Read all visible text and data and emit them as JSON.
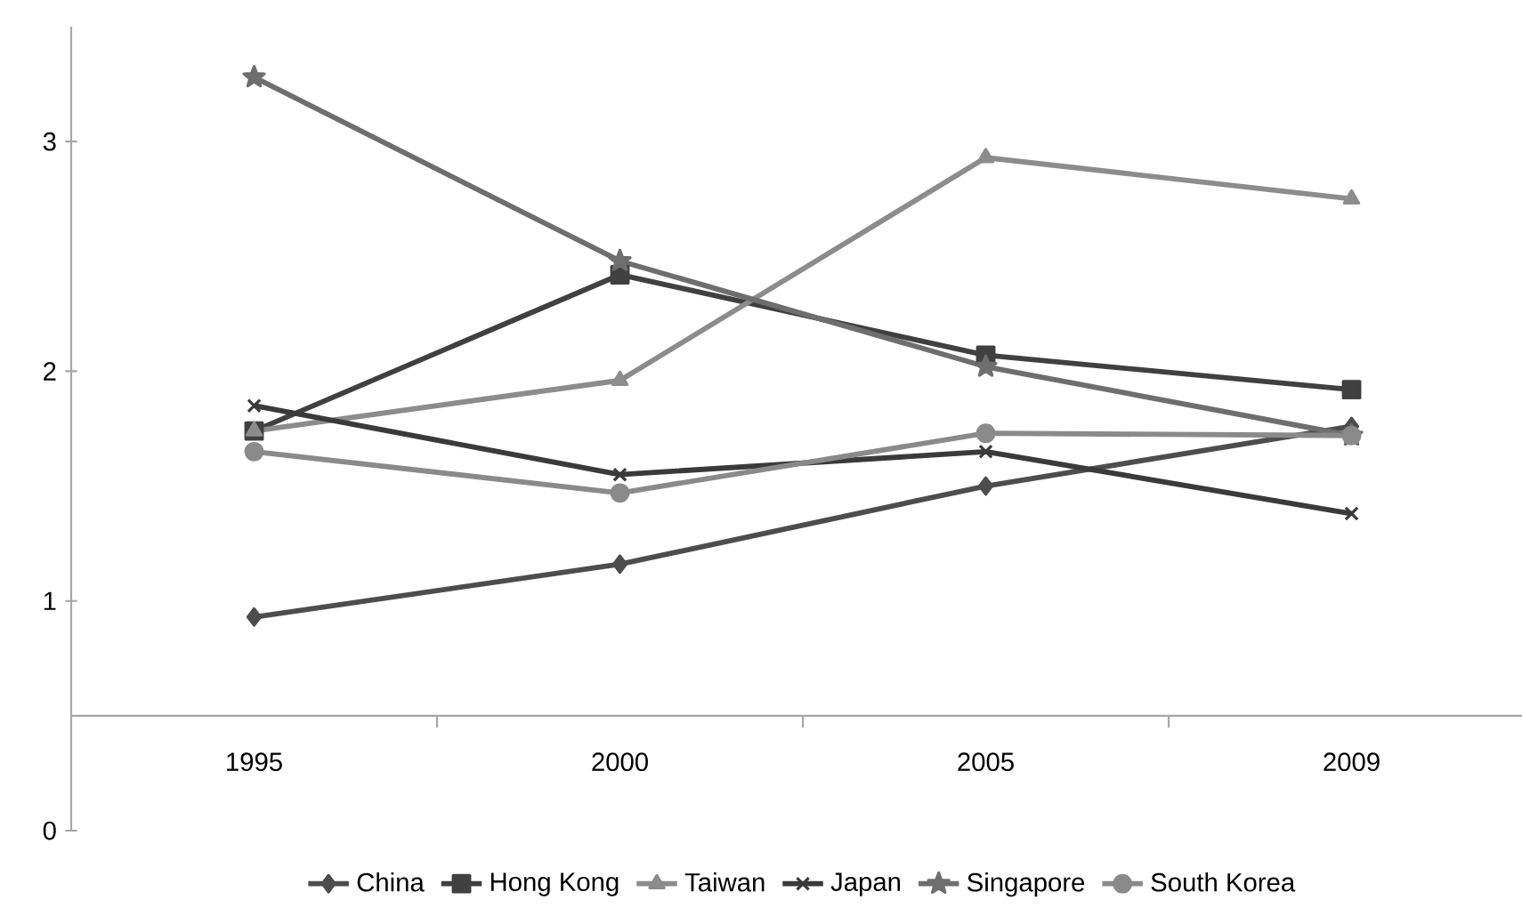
{
  "chart_data": {
    "type": "line",
    "categories": [
      "1995",
      "2000",
      "2005",
      "2009"
    ],
    "series": [
      {
        "name": "China",
        "color": "#4d4d4d",
        "marker": "diamond",
        "values": [
          0.93,
          1.16,
          1.5,
          1.76
        ]
      },
      {
        "name": "Hong Kong",
        "color": "#404040",
        "marker": "square",
        "values": [
          1.74,
          2.42,
          2.07,
          1.92
        ]
      },
      {
        "name": "Taiwan",
        "color": "#8c8c8c",
        "marker": "triangle",
        "values": [
          1.74,
          1.96,
          2.93,
          2.75
        ]
      },
      {
        "name": "Japan",
        "color": "#3a3a3a",
        "marker": "cross",
        "values": [
          1.85,
          1.55,
          1.65,
          1.38
        ]
      },
      {
        "name": "Singapore",
        "color": "#6e6e6e",
        "marker": "star",
        "values": [
          3.28,
          2.48,
          2.02,
          1.72
        ]
      },
      {
        "name": "South Korea",
        "color": "#8a8a8a",
        "marker": "circle",
        "values": [
          1.65,
          1.47,
          1.73,
          1.72
        ]
      }
    ],
    "ylim": [
      0,
      3.5
    ],
    "yticks": [
      0,
      1,
      2,
      3
    ],
    "grid": false,
    "legend": "bottom",
    "line_style": "solid"
  }
}
